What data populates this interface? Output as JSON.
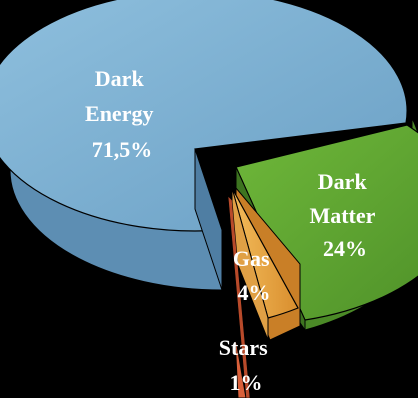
{
  "chart_data": {
    "type": "pie",
    "style": "3d-exploded",
    "slices": [
      {
        "name": "Dark Energy",
        "label_lines": [
          "Dark",
          "Energy",
          "71,5%"
        ],
        "value": 71.5,
        "color": "#7fb3d6"
      },
      {
        "name": "Dark Matter",
        "label_lines": [
          "Dark",
          "Matter",
          "24%"
        ],
        "value": 24,
        "color": "#6aaa3a"
      },
      {
        "name": "Gas",
        "label_lines": [
          "Gas",
          "4%"
        ],
        "value": 4,
        "color": "#e8a845"
      },
      {
        "name": "Stars",
        "label_lines": [
          "Stars",
          "1%"
        ],
        "value": 1,
        "color": "#d9603a"
      }
    ],
    "background": "#000000",
    "legend": "none"
  }
}
